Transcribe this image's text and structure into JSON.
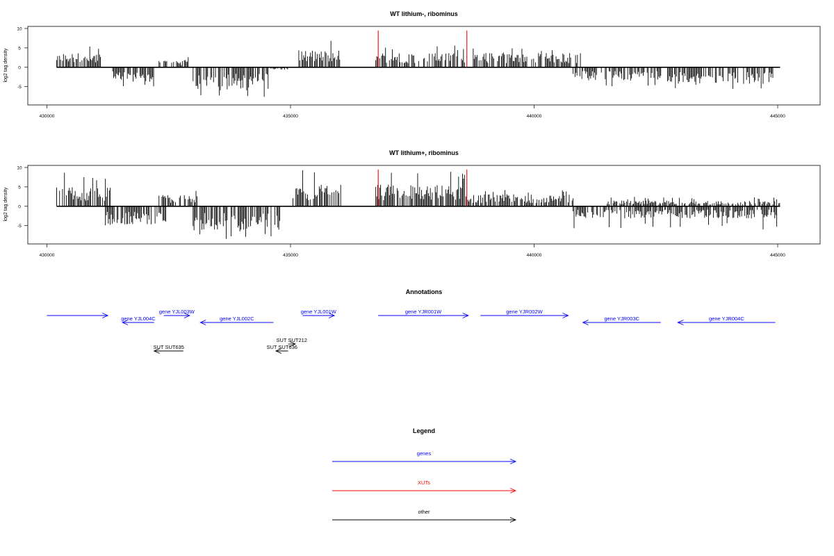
{
  "chart_data": [
    {
      "type": "bar",
      "title": "WT lithium-, ribominus",
      "ylabel": "log2 tag density",
      "xlabel": "",
      "xlim": [
        430000,
        445000
      ],
      "ylim": [
        -9,
        10
      ],
      "x_ticks": [
        430000,
        435000,
        440000,
        445000
      ],
      "y_ticks": [
        -5,
        0,
        5,
        10
      ],
      "xut_markers": [
        436800,
        438620
      ],
      "segments": [
        {
          "start": 430200,
          "end": 431100,
          "sign": 1,
          "amp": 3.0,
          "max": 6.0
        },
        {
          "start": 431350,
          "end": 432200,
          "sign": -1,
          "amp": 3.0,
          "max": 5.5
        },
        {
          "start": 432300,
          "end": 432900,
          "sign": 1,
          "amp": 1.5,
          "max": 3.5
        },
        {
          "start": 433000,
          "end": 434550,
          "sign": -1,
          "amp": 4.5,
          "max": 8.0
        },
        {
          "start": 434600,
          "end": 434950,
          "sign": -1,
          "amp": 0.5,
          "max": 1.0
        },
        {
          "start": 435150,
          "end": 436050,
          "sign": 1,
          "amp": 3.5,
          "max": 7.5
        },
        {
          "start": 436750,
          "end": 438600,
          "sign": 1,
          "amp": 3.0,
          "max": 6.0
        },
        {
          "start": 438750,
          "end": 440950,
          "sign": 1,
          "amp": 3.0,
          "max": 5.0
        },
        {
          "start": 440800,
          "end": 442600,
          "sign": -1,
          "amp": 2.8,
          "max": 5.0
        },
        {
          "start": 442700,
          "end": 444950,
          "sign": -1,
          "amp": 3.5,
          "max": 6.0
        }
      ]
    },
    {
      "type": "bar",
      "title": "WT lithium+, ribominus",
      "ylabel": "log2 tag density",
      "xlabel": "",
      "xlim": [
        430000,
        445000
      ],
      "ylim": [
        -9,
        10
      ],
      "x_ticks": [
        430000,
        435000,
        440000,
        445000
      ],
      "y_ticks": [
        -5,
        0,
        5,
        10
      ],
      "xut_markers": [
        436800,
        438620
      ],
      "segments": [
        {
          "start": 430200,
          "end": 431300,
          "sign": 1,
          "amp": 4.0,
          "max": 9.0
        },
        {
          "start": 431200,
          "end": 432450,
          "sign": -1,
          "amp": 4.0,
          "max": 6.5
        },
        {
          "start": 432300,
          "end": 433100,
          "sign": 1,
          "amp": 2.5,
          "max": 4.0
        },
        {
          "start": 433000,
          "end": 434800,
          "sign": -1,
          "amp": 5.0,
          "max": 8.5
        },
        {
          "start": 435050,
          "end": 436050,
          "sign": 1,
          "amp": 4.5,
          "max": 9.5
        },
        {
          "start": 436750,
          "end": 438600,
          "sign": 1,
          "amp": 4.5,
          "max": 9.0
        },
        {
          "start": 438600,
          "end": 440800,
          "sign": 1,
          "amp": 2.5,
          "max": 5.0
        },
        {
          "start": 440800,
          "end": 445000,
          "sign": -1,
          "amp": 2.5,
          "max": 6.0
        },
        {
          "start": 441500,
          "end": 445050,
          "sign": 1,
          "amp": 1.2,
          "max": 2.5
        }
      ]
    }
  ],
  "annotations": {
    "title": "Annotations",
    "items": [
      {
        "label": "",
        "start": 430000,
        "end": 431250,
        "dir": "right",
        "row": 1,
        "color": "#0000ff"
      },
      {
        "label": "gene YJL004C",
        "start": 431550,
        "end": 432200,
        "dir": "left",
        "row": 2,
        "color": "#0000ff"
      },
      {
        "label": "gene YJL003W",
        "start": 432400,
        "end": 432930,
        "dir": "right",
        "row": 1,
        "color": "#0000ff"
      },
      {
        "label": "gene YJL002C",
        "start": 433150,
        "end": 434650,
        "dir": "left",
        "row": 2,
        "color": "#0000ff"
      },
      {
        "label": "gene YJL001W",
        "start": 435250,
        "end": 435900,
        "dir": "right",
        "row": 1,
        "color": "#0000ff"
      },
      {
        "label": "gene YJR001W",
        "start": 436800,
        "end": 438650,
        "dir": "right",
        "row": 1,
        "color": "#0000ff"
      },
      {
        "label": "gene YJR002W",
        "start": 438900,
        "end": 440700,
        "dir": "right",
        "row": 1,
        "color": "#0000ff"
      },
      {
        "label": "gene YJR003C",
        "start": 441000,
        "end": 442600,
        "dir": "left",
        "row": 2,
        "color": "#0000ff"
      },
      {
        "label": "gene YJR004C",
        "start": 442950,
        "end": 444950,
        "dir": "left",
        "row": 2,
        "color": "#0000ff"
      },
      {
        "label": "SUT SUT635",
        "start": 432200,
        "end": 432800,
        "dir": "left",
        "row": 4,
        "color": "#000000"
      },
      {
        "label": "SUT SUT212",
        "start": 434950,
        "end": 435100,
        "dir": "right",
        "row": 3,
        "color": "#000000"
      },
      {
        "label": "SUT SUT636",
        "start": 434700,
        "end": 434950,
        "dir": "left",
        "row": 4,
        "color": "#000000"
      }
    ]
  },
  "legend": {
    "title": "Legend",
    "items": [
      {
        "label": "genes",
        "color": "#0000ff"
      },
      {
        "label": "XUTs",
        "color": "#ff0000"
      },
      {
        "label": "other",
        "color": "#000000"
      }
    ]
  },
  "colors": {
    "signal": "#000000",
    "xut_marker": "#ff0000",
    "gene": "#0000ff",
    "other": "#000000"
  }
}
